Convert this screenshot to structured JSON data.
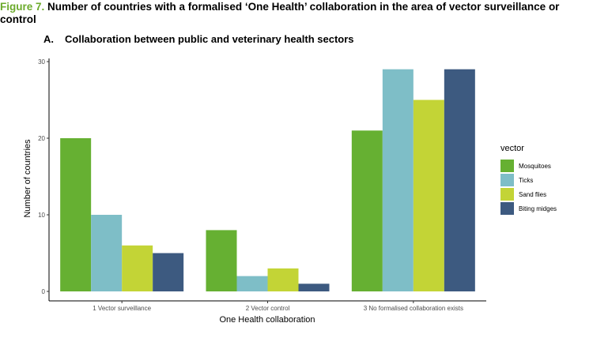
{
  "figure": {
    "label": "Figure 7.",
    "title": "Number of countries with a formalised ‘One Health’ collaboration in the area of vector surveillance or control"
  },
  "panel": {
    "label": "A.",
    "title": "Collaboration between public and veterinary health sectors"
  },
  "chart_data": {
    "type": "bar",
    "title": "Collaboration between public and veterinary health sectors",
    "xlabel": "One Health collaboration",
    "ylabel": "Number of countries",
    "categories": [
      "1 Vector surveillance",
      "2 Vector control",
      "3 No formalised collaboration exists"
    ],
    "series": [
      {
        "name": "Mosquitoes",
        "color": "#66b032",
        "values": [
          20,
          8,
          21
        ]
      },
      {
        "name": "Ticks",
        "color": "#7ebec7",
        "values": [
          10,
          2,
          29
        ]
      },
      {
        "name": "Sand flies",
        "color": "#c3d436",
        "values": [
          6,
          3,
          25
        ]
      },
      {
        "name": "Biting midges",
        "color": "#3d5a80",
        "values": [
          5,
          1,
          29
        ]
      }
    ],
    "ylim": [
      0,
      30
    ],
    "yticks": [
      0,
      10,
      20,
      30
    ],
    "legend_title": "vector",
    "legend_position": "right",
    "grid": false
  }
}
